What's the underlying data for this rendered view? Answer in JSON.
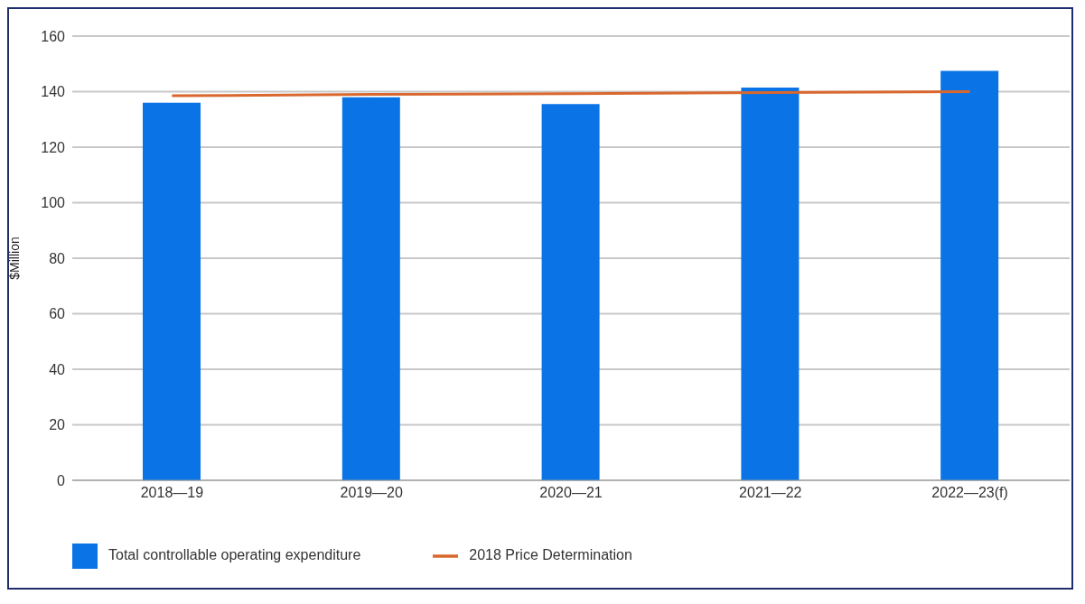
{
  "chart_data": {
    "type": "bar",
    "ylabel": "$Million",
    "categories": [
      "2018—19",
      "2019—20",
      "2020—21",
      "2021—22",
      "2022—23(f)"
    ],
    "series": [
      {
        "name": "Total controllable operating expenditure",
        "color": "#0a74e6",
        "values": [
          136,
          138,
          135.5,
          141.5,
          147.5
        ]
      },
      {
        "name": "2018 Price Determination",
        "type": "line",
        "color": "#d9672e",
        "values": [
          138.5,
          139,
          139.3,
          139.7,
          140
        ]
      }
    ],
    "ylim": [
      0,
      160
    ],
    "yticks": [
      0,
      20,
      40,
      60,
      80,
      100,
      120,
      140,
      160
    ],
    "grid": "y",
    "legend": "bottom left",
    "marker": "none"
  }
}
